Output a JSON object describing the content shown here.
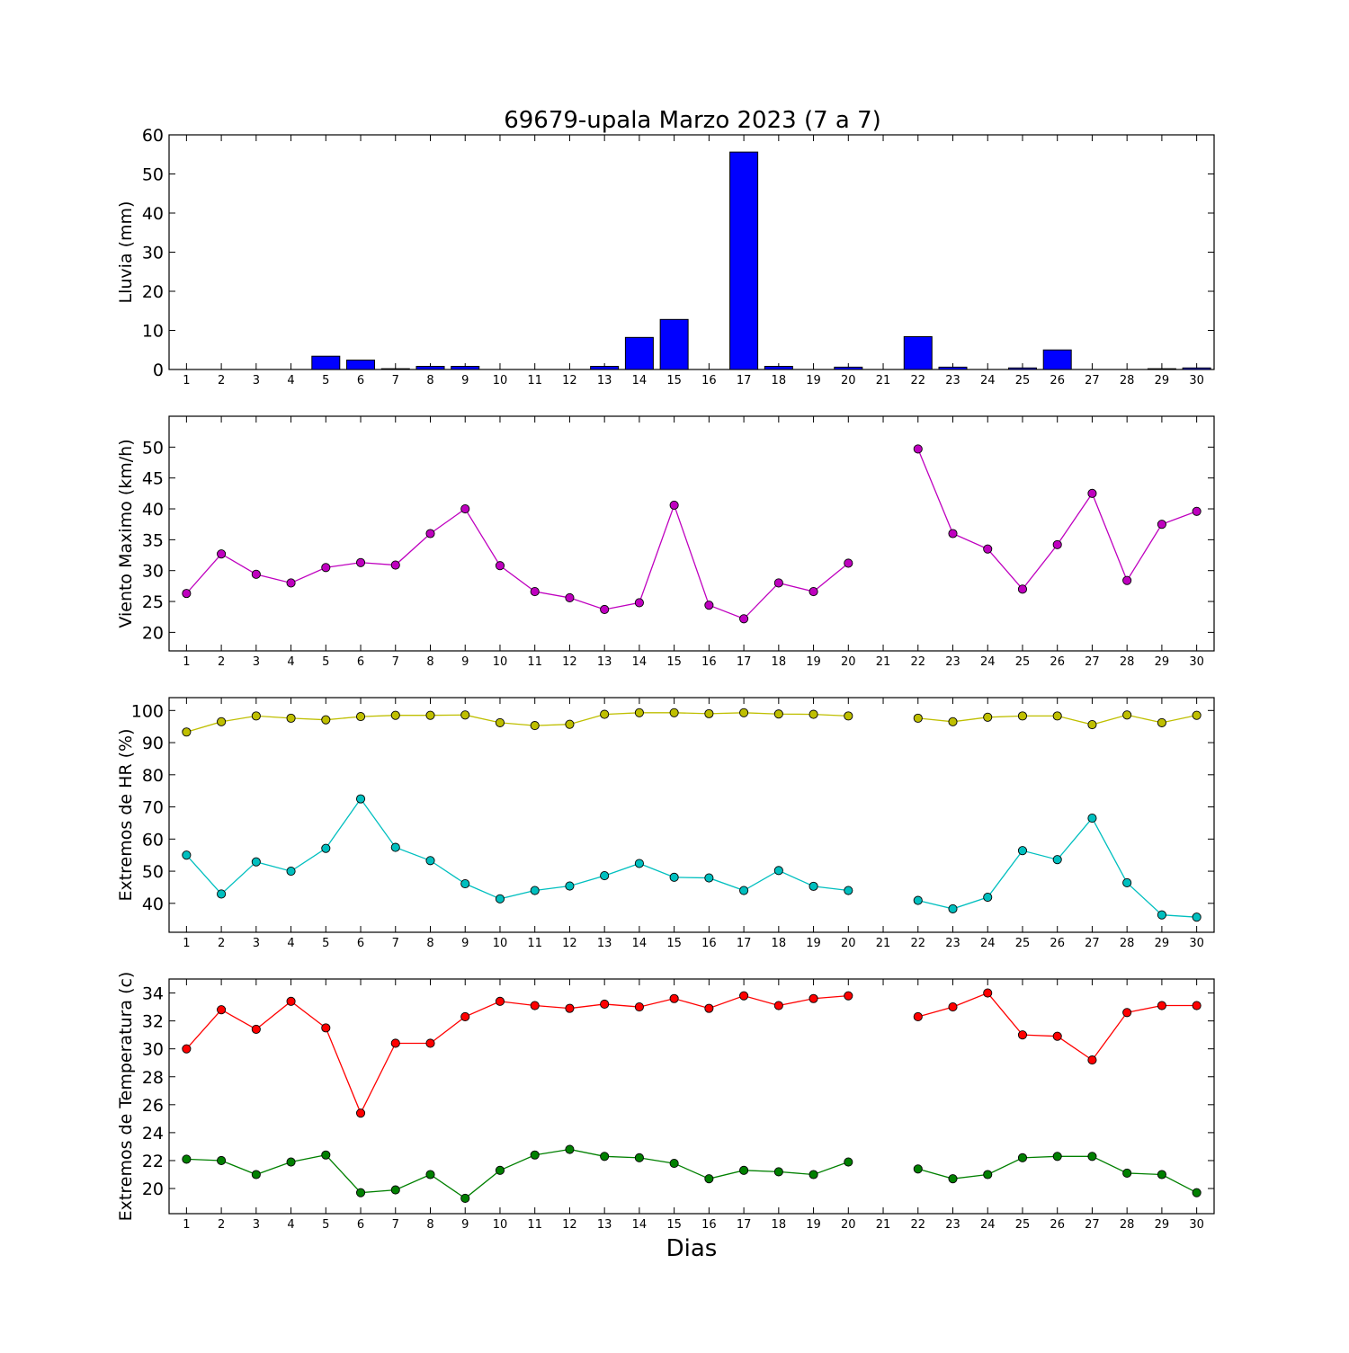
{
  "title": "69679-upala Marzo 2023  (7 a 7)",
  "xlabel": "Dias",
  "colors": {
    "rain": "#0000ff",
    "wind": "#bf00bf",
    "hr_max": "#bfbf00",
    "hr_min": "#00bfbf",
    "temp_max": "#ff0000",
    "temp_min": "#008000"
  },
  "chart_data": [
    {
      "type": "bar",
      "ylabel": "Lluvia (mm)",
      "categories": [
        "1",
        "2",
        "3",
        "4",
        "5",
        "6",
        "7",
        "8",
        "9",
        "10",
        "11",
        "12",
        "13",
        "14",
        "15",
        "16",
        "17",
        "18",
        "19",
        "20",
        "21",
        "22",
        "23",
        "24",
        "25",
        "26",
        "27",
        "28",
        "29",
        "30"
      ],
      "values": [
        0,
        0,
        0,
        0,
        3.4,
        2.4,
        0.2,
        0.8,
        0.8,
        0,
        0,
        0,
        0.8,
        8.2,
        12.8,
        0,
        55.6,
        0.8,
        0,
        0.6,
        0,
        8.4,
        0.6,
        0,
        0.4,
        5.0,
        0,
        0,
        0.2,
        0.4
      ],
      "ylim": [
        0,
        60
      ],
      "yticks": [
        0,
        10,
        20,
        30,
        40,
        50,
        60
      ]
    },
    {
      "type": "line",
      "ylabel": "Viento Maximo (km/h)",
      "categories": [
        "1",
        "2",
        "3",
        "4",
        "5",
        "6",
        "7",
        "8",
        "9",
        "10",
        "11",
        "12",
        "13",
        "14",
        "15",
        "16",
        "17",
        "18",
        "19",
        "20",
        "21",
        "22",
        "23",
        "24",
        "25",
        "26",
        "27",
        "28",
        "29",
        "30"
      ],
      "series": [
        {
          "values": [
            26.3,
            32.7,
            29.4,
            28.0,
            30.5,
            31.3,
            30.9,
            36.0,
            40.0,
            30.8,
            26.6,
            25.6,
            23.7,
            24.8,
            40.6,
            24.4,
            22.2,
            28.0,
            26.6,
            31.2,
            null,
            49.7,
            36.0,
            33.5,
            27.0,
            34.2,
            42.5,
            28.4,
            37.5,
            39.6
          ]
        }
      ],
      "ylim": [
        17,
        55
      ],
      "yticks": [
        20,
        25,
        30,
        35,
        40,
        45,
        50
      ]
    },
    {
      "type": "line",
      "ylabel": "Extremos de HR (%)",
      "categories": [
        "1",
        "2",
        "3",
        "4",
        "5",
        "6",
        "7",
        "8",
        "9",
        "10",
        "11",
        "12",
        "13",
        "14",
        "15",
        "16",
        "17",
        "18",
        "19",
        "20",
        "21",
        "22",
        "23",
        "24",
        "25",
        "26",
        "27",
        "28",
        "29",
        "30"
      ],
      "series": [
        {
          "values": [
            93.3,
            96.5,
            98.3,
            97.6,
            97.1,
            98.1,
            98.5,
            98.5,
            98.6,
            96.2,
            95.3,
            95.7,
            98.8,
            99.3,
            99.3,
            99.0,
            99.3,
            98.9,
            98.8,
            98.3,
            null,
            97.6,
            96.5,
            97.9,
            98.3,
            98.3,
            95.6,
            98.6,
            96.2,
            98.5
          ]
        },
        {
          "values": [
            55.0,
            42.9,
            52.9,
            50.0,
            57.1,
            72.5,
            57.4,
            53.3,
            46.1,
            41.4,
            44.0,
            45.4,
            48.6,
            52.4,
            48.1,
            47.9,
            44.0,
            50.2,
            45.3,
            44.0,
            null,
            40.9,
            38.3,
            41.9,
            56.4,
            53.6,
            66.5,
            46.4,
            36.4,
            35.7
          ]
        }
      ],
      "ylim": [
        31,
        104
      ],
      "yticks": [
        40,
        50,
        60,
        70,
        80,
        90,
        100
      ]
    },
    {
      "type": "line",
      "ylabel": "Extremos de Temperatura (c)",
      "categories": [
        "1",
        "2",
        "3",
        "4",
        "5",
        "6",
        "7",
        "8",
        "9",
        "10",
        "11",
        "12",
        "13",
        "14",
        "15",
        "16",
        "17",
        "18",
        "19",
        "20",
        "21",
        "22",
        "23",
        "24",
        "25",
        "26",
        "27",
        "28",
        "29",
        "30"
      ],
      "series": [
        {
          "values": [
            30.0,
            32.8,
            31.4,
            33.4,
            31.5,
            25.4,
            30.4,
            30.4,
            32.3,
            33.4,
            33.1,
            32.9,
            33.2,
            33.0,
            33.6,
            32.9,
            33.8,
            33.1,
            33.6,
            33.8,
            null,
            32.3,
            33.0,
            34.0,
            31.0,
            30.9,
            29.2,
            32.6,
            33.1,
            33.1
          ]
        },
        {
          "values": [
            22.1,
            22.0,
            21.0,
            21.9,
            22.4,
            19.7,
            19.9,
            21.0,
            19.3,
            21.3,
            22.4,
            22.8,
            22.3,
            22.2,
            21.8,
            20.7,
            21.3,
            21.2,
            21.0,
            21.9,
            null,
            21.4,
            20.7,
            21.0,
            22.2,
            22.3,
            22.3,
            21.1,
            21.0,
            19.7
          ]
        }
      ],
      "ylim": [
        18.2,
        35.0
      ],
      "yticks": [
        20,
        22,
        24,
        26,
        28,
        30,
        32,
        34
      ]
    }
  ]
}
